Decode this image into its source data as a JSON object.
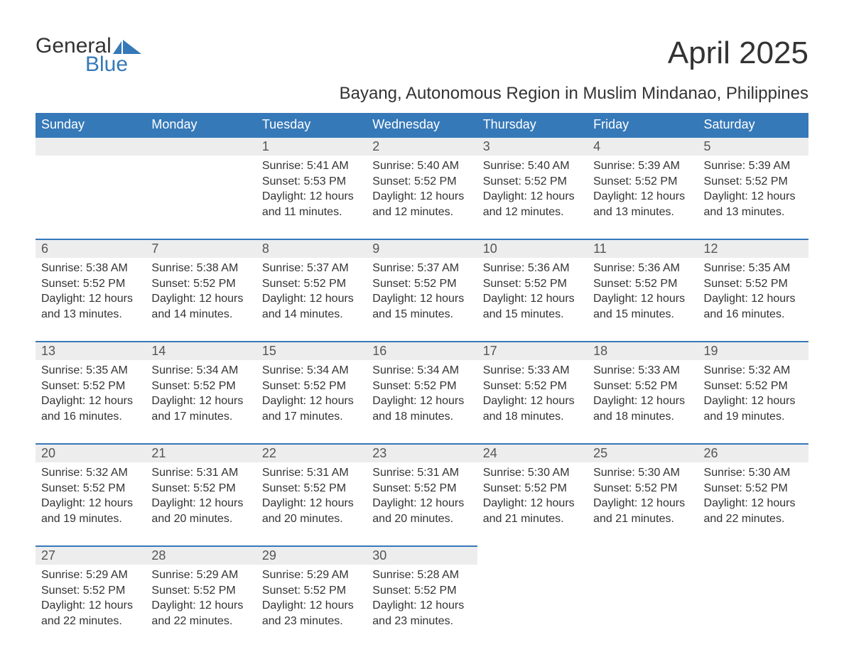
{
  "logo": {
    "top": "General",
    "bottom": "Blue"
  },
  "title": "April 2025",
  "location": "Bayang, Autonomous Region in Muslim Mindanao, Philippines",
  "colors": {
    "header_bg": "#3679b8",
    "header_text": "#ffffff",
    "daynum_bg": "#ededed",
    "border_top": "#3679b8",
    "body_text": "#333333",
    "logo_blue": "#3679b8"
  },
  "weekdays": [
    "Sunday",
    "Monday",
    "Tuesday",
    "Wednesday",
    "Thursday",
    "Friday",
    "Saturday"
  ],
  "weeks": [
    [
      null,
      null,
      {
        "num": "1",
        "sunrise": "Sunrise: 5:41 AM",
        "sunset": "Sunset: 5:53 PM",
        "daylight": "Daylight: 12 hours and 11 minutes."
      },
      {
        "num": "2",
        "sunrise": "Sunrise: 5:40 AM",
        "sunset": "Sunset: 5:52 PM",
        "daylight": "Daylight: 12 hours and 12 minutes."
      },
      {
        "num": "3",
        "sunrise": "Sunrise: 5:40 AM",
        "sunset": "Sunset: 5:52 PM",
        "daylight": "Daylight: 12 hours and 12 minutes."
      },
      {
        "num": "4",
        "sunrise": "Sunrise: 5:39 AM",
        "sunset": "Sunset: 5:52 PM",
        "daylight": "Daylight: 12 hours and 13 minutes."
      },
      {
        "num": "5",
        "sunrise": "Sunrise: 5:39 AM",
        "sunset": "Sunset: 5:52 PM",
        "daylight": "Daylight: 12 hours and 13 minutes."
      }
    ],
    [
      {
        "num": "6",
        "sunrise": "Sunrise: 5:38 AM",
        "sunset": "Sunset: 5:52 PM",
        "daylight": "Daylight: 12 hours and 13 minutes."
      },
      {
        "num": "7",
        "sunrise": "Sunrise: 5:38 AM",
        "sunset": "Sunset: 5:52 PM",
        "daylight": "Daylight: 12 hours and 14 minutes."
      },
      {
        "num": "8",
        "sunrise": "Sunrise: 5:37 AM",
        "sunset": "Sunset: 5:52 PM",
        "daylight": "Daylight: 12 hours and 14 minutes."
      },
      {
        "num": "9",
        "sunrise": "Sunrise: 5:37 AM",
        "sunset": "Sunset: 5:52 PM",
        "daylight": "Daylight: 12 hours and 15 minutes."
      },
      {
        "num": "10",
        "sunrise": "Sunrise: 5:36 AM",
        "sunset": "Sunset: 5:52 PM",
        "daylight": "Daylight: 12 hours and 15 minutes."
      },
      {
        "num": "11",
        "sunrise": "Sunrise: 5:36 AM",
        "sunset": "Sunset: 5:52 PM",
        "daylight": "Daylight: 12 hours and 15 minutes."
      },
      {
        "num": "12",
        "sunrise": "Sunrise: 5:35 AM",
        "sunset": "Sunset: 5:52 PM",
        "daylight": "Daylight: 12 hours and 16 minutes."
      }
    ],
    [
      {
        "num": "13",
        "sunrise": "Sunrise: 5:35 AM",
        "sunset": "Sunset: 5:52 PM",
        "daylight": "Daylight: 12 hours and 16 minutes."
      },
      {
        "num": "14",
        "sunrise": "Sunrise: 5:34 AM",
        "sunset": "Sunset: 5:52 PM",
        "daylight": "Daylight: 12 hours and 17 minutes."
      },
      {
        "num": "15",
        "sunrise": "Sunrise: 5:34 AM",
        "sunset": "Sunset: 5:52 PM",
        "daylight": "Daylight: 12 hours and 17 minutes."
      },
      {
        "num": "16",
        "sunrise": "Sunrise: 5:34 AM",
        "sunset": "Sunset: 5:52 PM",
        "daylight": "Daylight: 12 hours and 18 minutes."
      },
      {
        "num": "17",
        "sunrise": "Sunrise: 5:33 AM",
        "sunset": "Sunset: 5:52 PM",
        "daylight": "Daylight: 12 hours and 18 minutes."
      },
      {
        "num": "18",
        "sunrise": "Sunrise: 5:33 AM",
        "sunset": "Sunset: 5:52 PM",
        "daylight": "Daylight: 12 hours and 18 minutes."
      },
      {
        "num": "19",
        "sunrise": "Sunrise: 5:32 AM",
        "sunset": "Sunset: 5:52 PM",
        "daylight": "Daylight: 12 hours and 19 minutes."
      }
    ],
    [
      {
        "num": "20",
        "sunrise": "Sunrise: 5:32 AM",
        "sunset": "Sunset: 5:52 PM",
        "daylight": "Daylight: 12 hours and 19 minutes."
      },
      {
        "num": "21",
        "sunrise": "Sunrise: 5:31 AM",
        "sunset": "Sunset: 5:52 PM",
        "daylight": "Daylight: 12 hours and 20 minutes."
      },
      {
        "num": "22",
        "sunrise": "Sunrise: 5:31 AM",
        "sunset": "Sunset: 5:52 PM",
        "daylight": "Daylight: 12 hours and 20 minutes."
      },
      {
        "num": "23",
        "sunrise": "Sunrise: 5:31 AM",
        "sunset": "Sunset: 5:52 PM",
        "daylight": "Daylight: 12 hours and 20 minutes."
      },
      {
        "num": "24",
        "sunrise": "Sunrise: 5:30 AM",
        "sunset": "Sunset: 5:52 PM",
        "daylight": "Daylight: 12 hours and 21 minutes."
      },
      {
        "num": "25",
        "sunrise": "Sunrise: 5:30 AM",
        "sunset": "Sunset: 5:52 PM",
        "daylight": "Daylight: 12 hours and 21 minutes."
      },
      {
        "num": "26",
        "sunrise": "Sunrise: 5:30 AM",
        "sunset": "Sunset: 5:52 PM",
        "daylight": "Daylight: 12 hours and 22 minutes."
      }
    ],
    [
      {
        "num": "27",
        "sunrise": "Sunrise: 5:29 AM",
        "sunset": "Sunset: 5:52 PM",
        "daylight": "Daylight: 12 hours and 22 minutes."
      },
      {
        "num": "28",
        "sunrise": "Sunrise: 5:29 AM",
        "sunset": "Sunset: 5:52 PM",
        "daylight": "Daylight: 12 hours and 22 minutes."
      },
      {
        "num": "29",
        "sunrise": "Sunrise: 5:29 AM",
        "sunset": "Sunset: 5:52 PM",
        "daylight": "Daylight: 12 hours and 23 minutes."
      },
      {
        "num": "30",
        "sunrise": "Sunrise: 5:28 AM",
        "sunset": "Sunset: 5:52 PM",
        "daylight": "Daylight: 12 hours and 23 minutes."
      },
      null,
      null,
      null
    ]
  ]
}
